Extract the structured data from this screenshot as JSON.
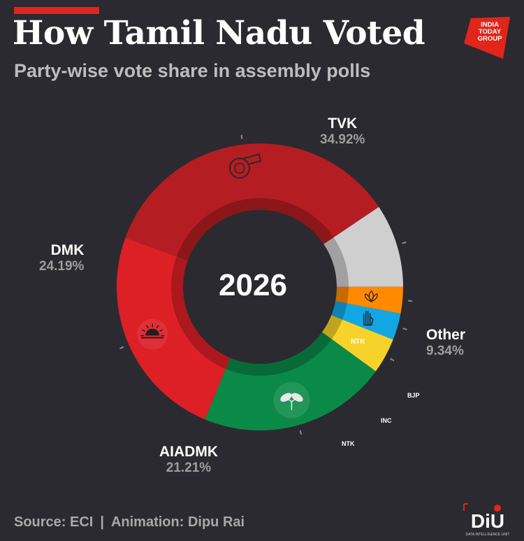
{
  "header": {
    "title": "How Tamil Nadu Voted",
    "subtitle": "Party-wise vote share in assembly polls"
  },
  "logo": {
    "line1": "INDIA",
    "line2": "TODAY",
    "line3": "GROUP",
    "color": "#e1251b"
  },
  "center_label": "2026",
  "chart_data": {
    "type": "pie",
    "variant": "donut",
    "categories": [
      "TVK",
      "Other",
      "BJP",
      "INC",
      "NTK",
      "AIADMK",
      "DMK"
    ],
    "values": [
      34.92,
      9.34,
      3.0,
      3.0,
      4.0,
      21.21,
      24.19
    ],
    "value_labels": [
      "34.92%",
      "9.34%",
      "",
      "",
      "",
      "21.21%",
      "24.19%"
    ],
    "colors": [
      "#b41e22",
      "#cfcfcf",
      "#ff8a00",
      "#12a7e4",
      "#f6d22a",
      "#0b8a47",
      "#dd1f26"
    ],
    "title": "",
    "center_text": "2026"
  },
  "segment_icons": {
    "TVK": "whistle-icon",
    "DMK": "rising-sun-icon",
    "AIADMK": "two-leaves-icon",
    "NTK": "ntk-symbol-icon",
    "INC": "hand-icon",
    "BJP": "lotus-icon"
  },
  "ntk_symbol_text": "NTK",
  "footer": {
    "source": "Source: ECI",
    "separator": "|",
    "credit": "Animation: Dipu Rai"
  },
  "diu": {
    "text": "DiU",
    "tagline": "DATA INTELLIGENCE UNIT"
  }
}
